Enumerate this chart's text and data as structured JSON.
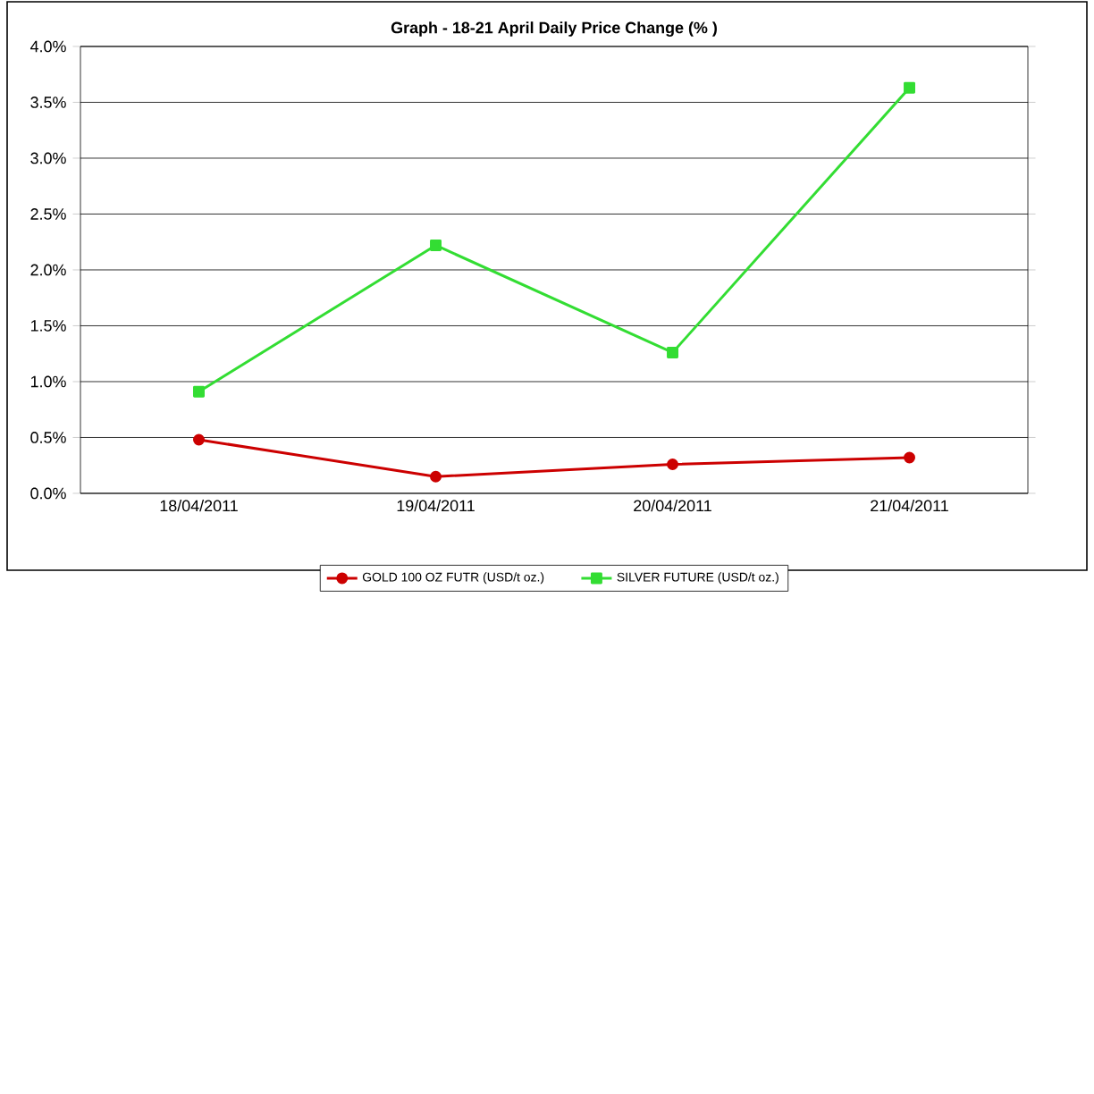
{
  "chart_data": {
    "type": "line",
    "title": "Graph -  18-21 April Daily Price Change (% )",
    "categories": [
      "18/04/2011",
      "19/04/2011",
      "20/04/2011",
      "21/04/2011"
    ],
    "series": [
      {
        "name": "GOLD 100 OZ FUTR (USD/t oz.)",
        "color": "#cc0000",
        "marker": "circle",
        "values": [
          0.48,
          0.15,
          0.26,
          0.32
        ]
      },
      {
        "name": "SILVER FUTURE (USD/t oz.)",
        "color": "#33dd33",
        "marker": "square",
        "values": [
          0.91,
          2.22,
          1.26,
          3.63
        ]
      }
    ],
    "ylim": [
      0,
      4
    ],
    "yticks": [
      {
        "value": 0,
        "label": "0.0%"
      },
      {
        "value": 0.5,
        "label": "0.5%"
      },
      {
        "value": 1,
        "label": "1.0%"
      },
      {
        "value": 1.5,
        "label": "1.5%"
      },
      {
        "value": 2,
        "label": "2.0%"
      },
      {
        "value": 2.5,
        "label": "2.5%"
      },
      {
        "value": 3,
        "label": "3.0%"
      },
      {
        "value": 3.5,
        "label": "3.5%"
      },
      {
        "value": 4,
        "label": "4.0%"
      }
    ],
    "grid": "y",
    "legend": "bottom"
  }
}
